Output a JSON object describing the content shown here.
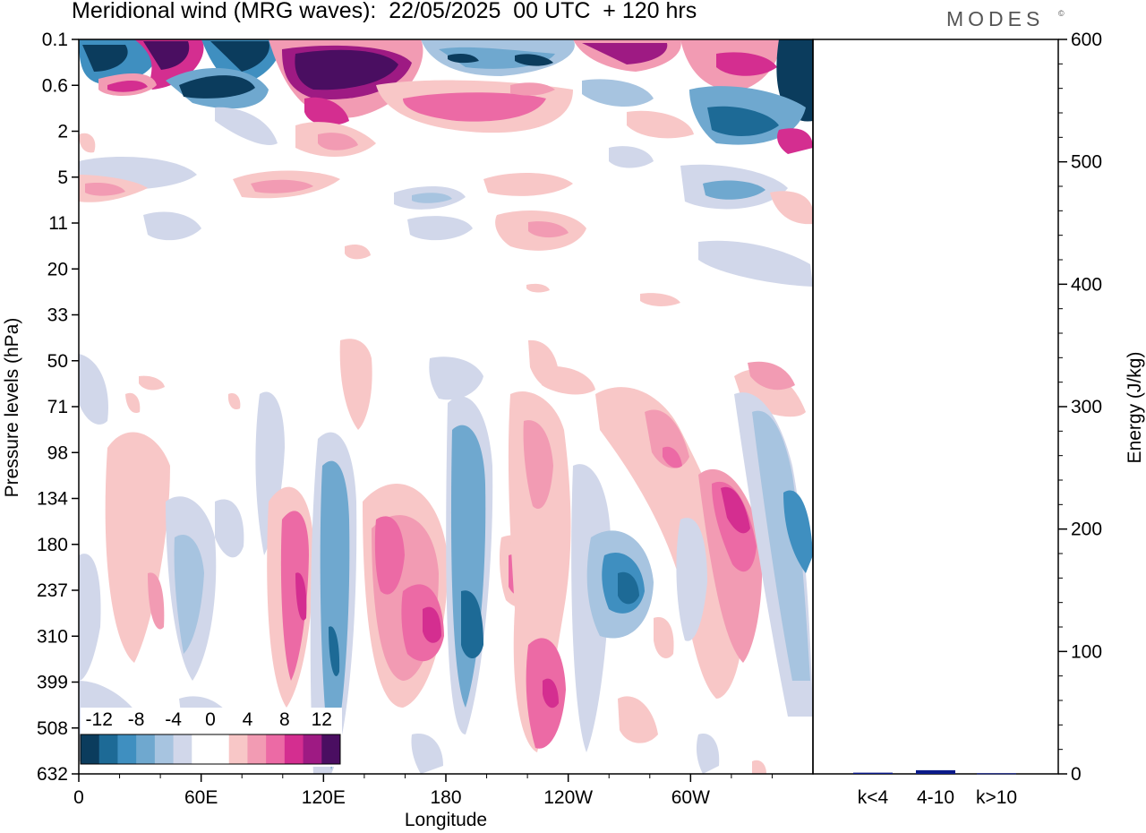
{
  "title": "Meridional wind (MRG waves):  22/05/2025  00 UTC  + 120 hrs",
  "logo": "MODES",
  "logo_mark": "©",
  "chart_data": [
    {
      "type": "heatmap",
      "title": "Meridional wind (MRG waves):  22/05/2025  00 UTC  + 120 hrs",
      "xlabel": "Longitude",
      "ylabel": "Pressure levels (hPa)",
      "x_ticks": [
        "0",
        "60E",
        "120E",
        "180",
        "120W",
        "60W"
      ],
      "y_ticks": [
        "0.1",
        "0.6",
        "2",
        "5",
        "11",
        "20",
        "33",
        "50",
        "71",
        "98",
        "134",
        "180",
        "237",
        "310",
        "399",
        "508",
        "632"
      ],
      "colorbar_labels": [
        "-12",
        "-8",
        "-4",
        "0",
        "4",
        "8",
        "12"
      ],
      "colorbar_colors": [
        "#0b3c5d",
        "#1d6a96",
        "#3f8fc0",
        "#6fa8cf",
        "#a7c4e0",
        "#d1d7ea",
        "#ffffff",
        "#ffffff",
        "#f8c7c7",
        "#f29bb3",
        "#ec6aa5",
        "#d42e90",
        "#9e1a83",
        "#4a0e61"
      ]
    },
    {
      "type": "bar",
      "categories": [
        "k<4",
        "4-10",
        "k>10"
      ],
      "values": [
        1,
        3,
        0.5
      ],
      "ylabel": "Energy (J/kg)",
      "ylim": [
        0,
        600
      ],
      "y_ticks": [
        "0",
        "100",
        "200",
        "300",
        "400",
        "500",
        "600"
      ],
      "bar_color": "#0b1a8a"
    }
  ]
}
